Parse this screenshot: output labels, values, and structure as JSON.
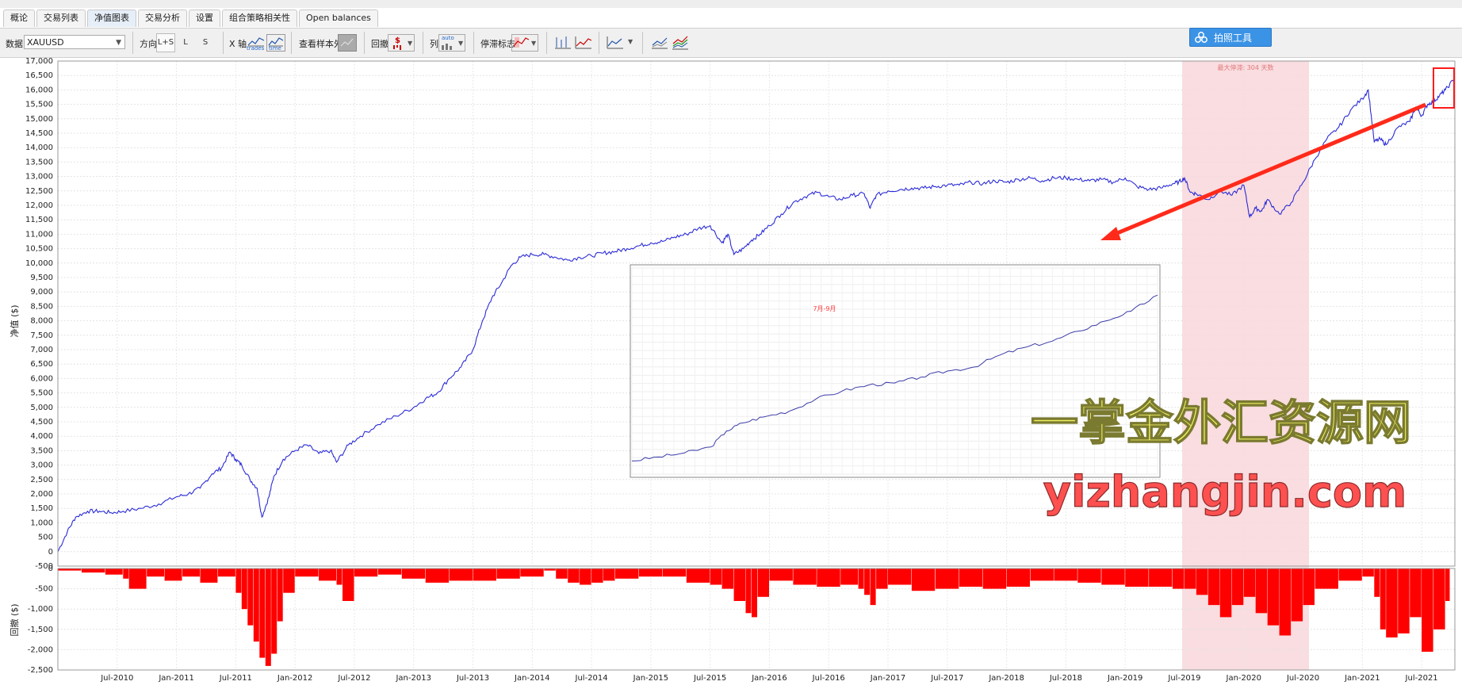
{
  "tabs": [
    {
      "label": "概论"
    },
    {
      "label": "交易列表"
    },
    {
      "label": "净值图表"
    },
    {
      "label": "交易分析"
    },
    {
      "label": "设置"
    },
    {
      "label": "组合策略相关性"
    },
    {
      "label": "Open balances"
    }
  ],
  "active_tab": 2,
  "toolbar": {
    "data_label": "数据",
    "data_value": "XAUUSD",
    "direction_label": "方向",
    "direction_options": [
      "L+S",
      "L",
      "S"
    ],
    "xaxis_label": "X 轴",
    "xaxis_trades": "trades",
    "xaxis_time": "time",
    "out_of_sample_label": "查看样本外",
    "drawdown_label": "回撤",
    "drawdown_unit": "$",
    "column_label": "列",
    "column_value": "auto",
    "stagnation_label": "停滞标志"
  },
  "badge": {
    "label": "拍照工具",
    "icon": "flower-icon"
  },
  "chart_data": [
    {
      "type": "line",
      "ylabel": "净值 ($)",
      "ylim": [
        -500,
        17000
      ],
      "yticks": [
        -500,
        0,
        500,
        1000,
        1500,
        2000,
        2500,
        3000,
        3500,
        4000,
        4500,
        5000,
        5500,
        6000,
        6500,
        7000,
        7500,
        8000,
        8500,
        9000,
        9500,
        10000,
        10500,
        11000,
        11500,
        12000,
        12500,
        13000,
        13500,
        14000,
        14500,
        15000,
        15500,
        16000,
        16500,
        17000
      ],
      "ytick_labels": [
        "-500",
        "0",
        "500",
        "1,000",
        "1,500",
        "2,000",
        "2,500",
        "3,000",
        "3,500",
        "4,000",
        "4,500",
        "5,000",
        "5,500",
        "6,000",
        "6,500",
        "7,000",
        "7,500",
        "8,000",
        "8,500",
        "9,000",
        "9,500",
        "10,000",
        "10,500",
        "11,000",
        "11,500",
        "12,000",
        "12,500",
        "13,000",
        "13,500",
        "14,000",
        "14,500",
        "15,000",
        "15,500",
        "16,000",
        "16,500",
        "17,000"
      ],
      "xlim": [
        2010.0,
        2021.78
      ],
      "x_labels": [
        "Jul-2010",
        "Jan-2011",
        "Jul-2011",
        "Jan-2012",
        "Jul-2012",
        "Jan-2013",
        "Jul-2013",
        "Jan-2014",
        "Jul-2014",
        "Jan-2015",
        "Jul-2015",
        "Jan-2016",
        "Jul-2016",
        "Jan-2017",
        "Jul-2017",
        "Jan-2018",
        "Jul-2018",
        "Jan-2019",
        "Jul-2019",
        "Jan-2020",
        "Jul-2020",
        "Jan-2021",
        "Jul-2021"
      ],
      "x_label_positions": [
        2010.5,
        2011.0,
        2011.5,
        2012.0,
        2012.5,
        2013.0,
        2013.5,
        2014.0,
        2014.5,
        2015.0,
        2015.5,
        2016.0,
        2016.5,
        2017.0,
        2017.5,
        2018.0,
        2018.5,
        2019.0,
        2019.5,
        2020.0,
        2020.5,
        2021.0,
        2021.5
      ],
      "grid": true,
      "color": "#2b2bd6",
      "stagnation": {
        "label": "最大停滞: 304 天数",
        "x_start": 2019.48,
        "x_end": 2020.55,
        "color": "#f8d7da"
      },
      "series": [
        {
          "x": [
            2010.0,
            2010.08,
            2010.15,
            2010.25,
            2010.35,
            2010.45,
            2010.55,
            2010.7,
            2010.85,
            2011.0,
            2011.1,
            2011.2,
            2011.3,
            2011.38,
            2011.45,
            2011.5,
            2011.55,
            2011.62,
            2011.68,
            2011.72,
            2011.78,
            2011.82,
            2011.9,
            2012.0,
            2012.1,
            2012.2,
            2012.3,
            2012.35,
            2012.45,
            2012.55,
            2012.7,
            2012.85,
            2013.0,
            2013.1,
            2013.2,
            2013.3,
            2013.4,
            2013.5,
            2013.58,
            2013.66,
            2013.74,
            2013.82,
            2013.9,
            2014.0,
            2014.1,
            2014.2,
            2014.3,
            2014.4,
            2014.5,
            2014.6,
            2014.7,
            2014.8,
            2014.9,
            2015.0,
            2015.1,
            2015.2,
            2015.3,
            2015.4,
            2015.5,
            2015.6,
            2015.65,
            2015.7,
            2015.78,
            2015.85,
            2015.92,
            2016.0,
            2016.1,
            2016.2,
            2016.3,
            2016.4,
            2016.5,
            2016.6,
            2016.7,
            2016.8,
            2016.85,
            2016.9,
            2017.0,
            2017.1,
            2017.2,
            2017.3,
            2017.4,
            2017.5,
            2017.6,
            2017.7,
            2017.8,
            2017.9,
            2018.0,
            2018.1,
            2018.2,
            2018.3,
            2018.4,
            2018.5,
            2018.6,
            2018.7,
            2018.8,
            2018.9,
            2019.0,
            2019.1,
            2019.2,
            2019.3,
            2019.4,
            2019.45,
            2019.5,
            2019.55,
            2019.6,
            2019.7,
            2019.8,
            2019.9,
            2020.0,
            2020.05,
            2020.1,
            2020.15,
            2020.2,
            2020.3,
            2020.4,
            2020.5,
            2020.6,
            2020.7,
            2020.8,
            2020.9,
            2021.0,
            2021.05,
            2021.1,
            2021.15,
            2021.2,
            2021.3,
            2021.4,
            2021.45,
            2021.5,
            2021.55,
            2021.6,
            2021.65,
            2021.7,
            2021.78
          ],
          "y": [
            0,
            700,
            1200,
            1400,
            1400,
            1350,
            1400,
            1500,
            1650,
            1900,
            2000,
            2200,
            2700,
            2900,
            3450,
            3200,
            3000,
            2500,
            2200,
            1200,
            1900,
            2600,
            3200,
            3500,
            3700,
            3400,
            3500,
            3100,
            3700,
            4000,
            4400,
            4700,
            5000,
            5300,
            5500,
            6000,
            6400,
            7000,
            8000,
            8800,
            9300,
            9900,
            10200,
            10300,
            10300,
            10200,
            10100,
            10200,
            10250,
            10350,
            10400,
            10500,
            10600,
            10700,
            10750,
            10900,
            11000,
            11200,
            11300,
            10700,
            11000,
            10300,
            10500,
            10800,
            11000,
            11300,
            11700,
            12100,
            12300,
            12450,
            12300,
            12200,
            12350,
            12400,
            11900,
            12350,
            12500,
            12550,
            12600,
            12600,
            12650,
            12700,
            12700,
            12800,
            12750,
            12850,
            12800,
            12900,
            12950,
            12850,
            12950,
            12950,
            12900,
            12850,
            12900,
            12800,
            12950,
            12650,
            12550,
            12600,
            12750,
            12800,
            12950,
            12450,
            12400,
            12200,
            12500,
            12350,
            12700,
            11600,
            11900,
            11800,
            12200,
            11700,
            12100,
            12800,
            13600,
            14300,
            14700,
            15300,
            15700,
            16000,
            14200,
            14300,
            14100,
            14700,
            14900,
            15400,
            15100,
            15500,
            15600,
            15800,
            16000,
            16400
          ]
        }
      ]
    },
    {
      "type": "bar",
      "ylabel": "回撤 ($)",
      "ylim": [
        -2500,
        0
      ],
      "yticks": [
        -2500,
        -2000,
        -1500,
        -1000,
        -500,
        0
      ],
      "ytick_labels": [
        "-2,500",
        "-2,000",
        "-1,500",
        "-1,000",
        "-500",
        "0"
      ],
      "color": "#ff0000",
      "x": [
        2010.0,
        2010.2,
        2010.4,
        2010.55,
        2010.6,
        2010.75,
        2010.9,
        2011.05,
        2011.2,
        2011.35,
        2011.5,
        2011.55,
        2011.6,
        2011.65,
        2011.7,
        2011.75,
        2011.8,
        2011.85,
        2011.9,
        2012.0,
        2012.2,
        2012.35,
        2012.4,
        2012.5,
        2012.7,
        2012.9,
        2013.1,
        2013.3,
        2013.5,
        2013.7,
        2013.9,
        2014.1,
        2014.2,
        2014.3,
        2014.4,
        2014.5,
        2014.6,
        2014.7,
        2014.9,
        2015.1,
        2015.3,
        2015.5,
        2015.6,
        2015.7,
        2015.8,
        2015.85,
        2015.9,
        2016.0,
        2016.2,
        2016.4,
        2016.6,
        2016.75,
        2016.8,
        2016.85,
        2016.9,
        2017.0,
        2017.2,
        2017.4,
        2017.6,
        2017.8,
        2018.0,
        2018.2,
        2018.4,
        2018.6,
        2018.8,
        2019.0,
        2019.2,
        2019.4,
        2019.5,
        2019.6,
        2019.7,
        2019.8,
        2019.9,
        2020.0,
        2020.1,
        2020.2,
        2020.3,
        2020.4,
        2020.5,
        2020.6,
        2020.8,
        2021.0,
        2021.1,
        2021.15,
        2021.2,
        2021.3,
        2021.4,
        2021.5,
        2021.6,
        2021.7
      ],
      "values": [
        -50,
        -100,
        -150,
        -250,
        -500,
        -200,
        -300,
        -200,
        -350,
        -200,
        -600,
        -1000,
        -1400,
        -1800,
        -2200,
        -2400,
        -2100,
        -1300,
        -600,
        -200,
        -300,
        -400,
        -800,
        -200,
        -150,
        -250,
        -350,
        -300,
        -300,
        -250,
        -200,
        -50,
        -250,
        -350,
        -400,
        -350,
        -300,
        -250,
        -200,
        -200,
        -350,
        -400,
        -500,
        -800,
        -1100,
        -1200,
        -700,
        -300,
        -400,
        -450,
        -400,
        -500,
        -650,
        -900,
        -500,
        -400,
        -550,
        -500,
        -450,
        -500,
        -450,
        -300,
        -300,
        -350,
        -400,
        -450,
        -450,
        -500,
        -500,
        -650,
        -900,
        -1200,
        -900,
        -700,
        -1100,
        -1400,
        -1650,
        -1300,
        -900,
        -500,
        -300,
        -200,
        -700,
        -1500,
        -1700,
        -1600,
        -1200,
        -2050,
        -1500,
        -800
      ]
    },
    {
      "type": "line",
      "title": "7月-9月",
      "color": "#3a3aa8",
      "series": [
        {
          "x": [
            0,
            5,
            10,
            15,
            18,
            21,
            25,
            30,
            35,
            40,
            45,
            50,
            55,
            60,
            65,
            70,
            75,
            80,
            85,
            90,
            95,
            100
          ],
          "y": [
            5,
            7,
            9,
            12,
            20,
            24,
            27,
            30,
            36,
            40,
            43,
            44,
            47,
            50,
            52,
            58,
            62,
            65,
            70,
            75,
            80,
            88
          ]
        }
      ]
    }
  ],
  "watermark": {
    "cn": "一掌金外汇资源网",
    "url": "yizhangjin.com"
  }
}
